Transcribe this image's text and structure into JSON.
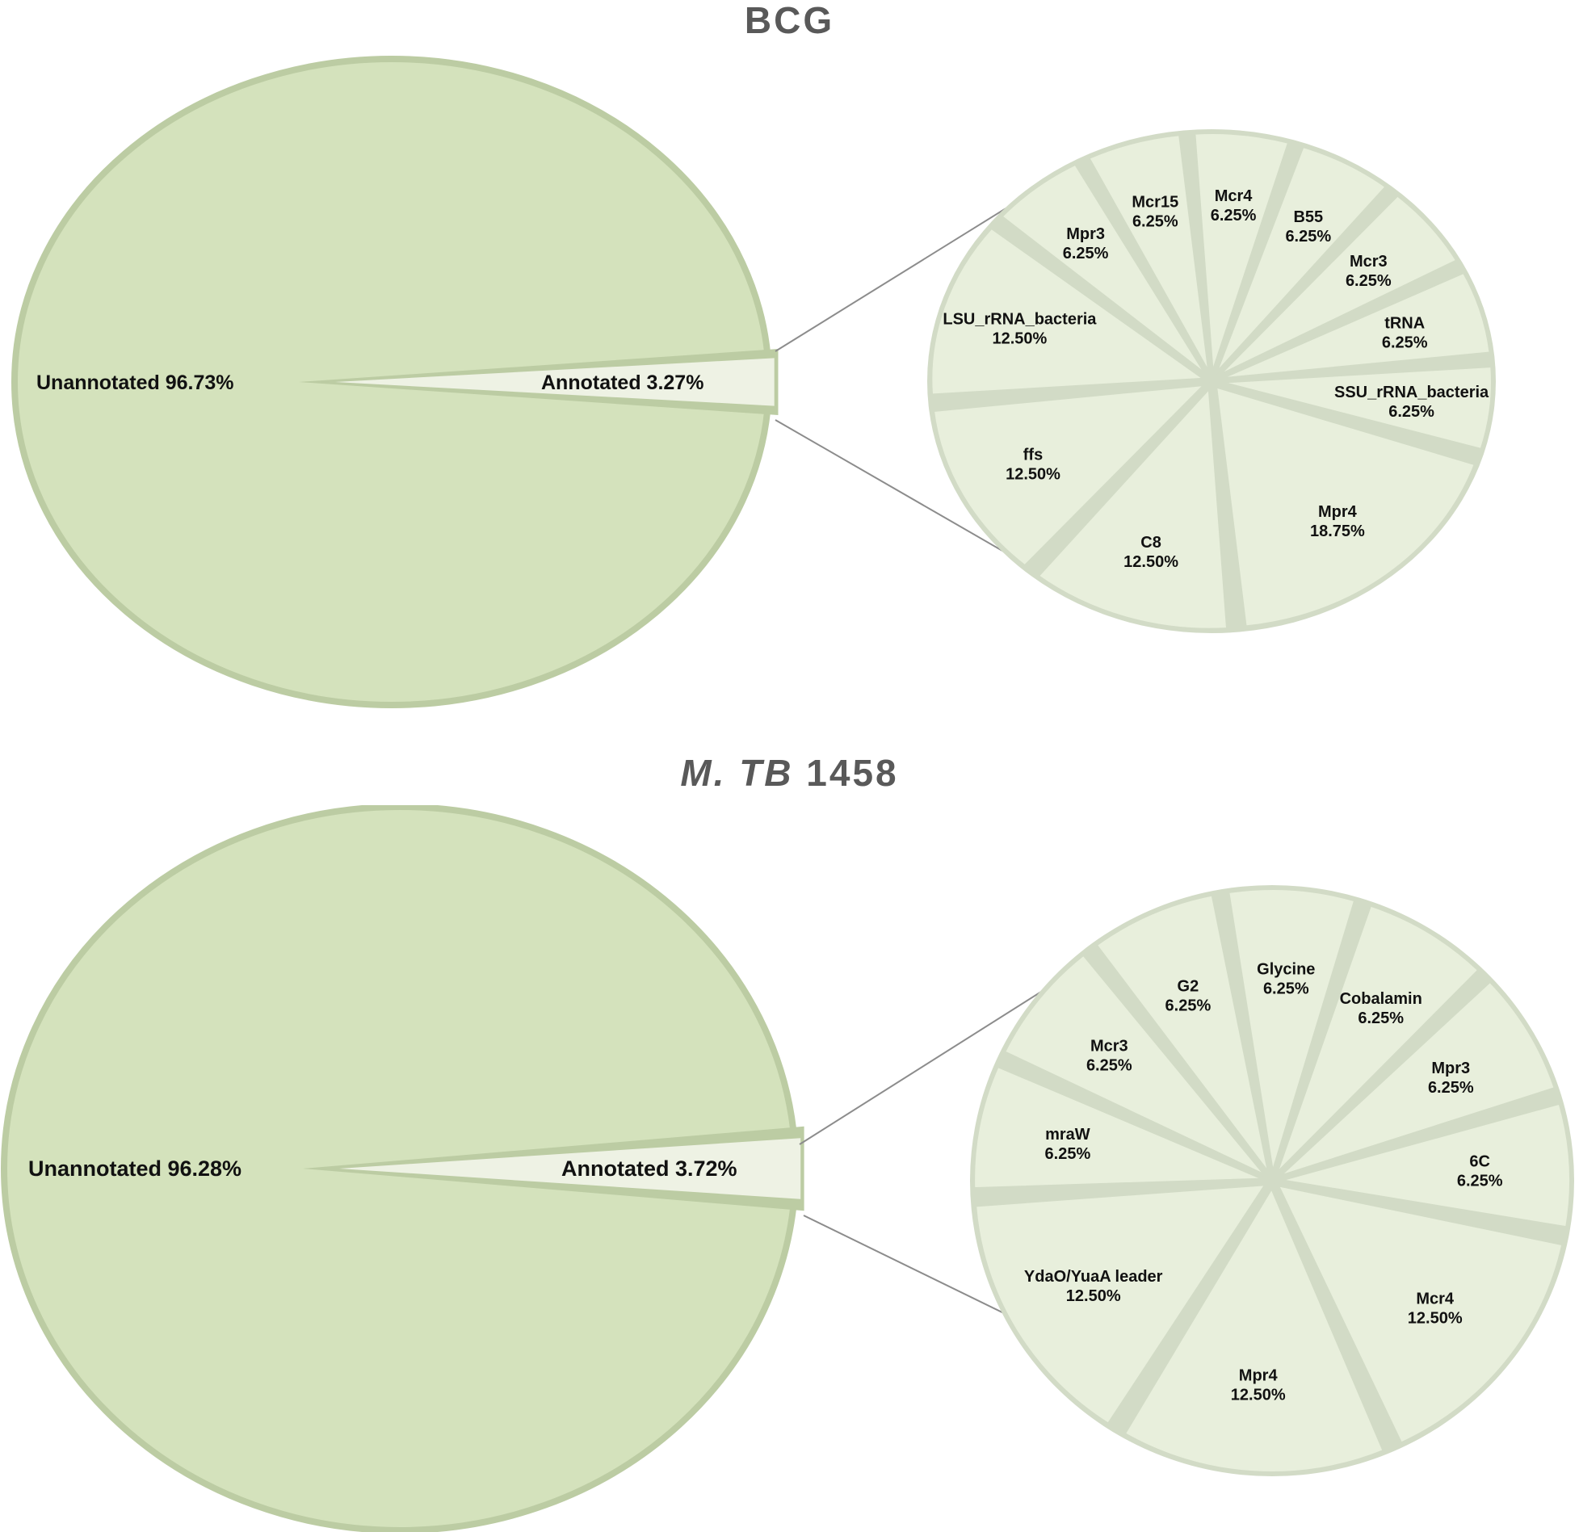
{
  "panels": [
    {
      "title_prefix": "",
      "title_italic": "",
      "title_rest": "BCG",
      "chart_data": {
        "type": "pie",
        "title": "BCG",
        "overview": {
          "slices": [
            {
              "label": "Unannotated",
              "value": 96.73,
              "text": "Unannotated 96.73%"
            },
            {
              "label": "Annotated",
              "value": 3.27,
              "text": "Annotated 3.27%"
            }
          ]
        },
        "breakdown": {
          "of": "Annotated",
          "slices": [
            {
              "label": "Mcr4",
              "value": 6.25,
              "pct": "6.25%"
            },
            {
              "label": "B55",
              "value": 6.25,
              "pct": "6.25%"
            },
            {
              "label": "Mcr3",
              "value": 6.25,
              "pct": "6.25%"
            },
            {
              "label": "tRNA",
              "value": 6.25,
              "pct": "6.25%"
            },
            {
              "label": "SSU_rRNA_bacteria",
              "value": 6.25,
              "pct": "6.25%"
            },
            {
              "label": "Mpr4",
              "value": 18.75,
              "pct": "18.75%"
            },
            {
              "label": "C8",
              "value": 12.5,
              "pct": "12.50%"
            },
            {
              "label": "ffs",
              "value": 12.5,
              "pct": "12.50%"
            },
            {
              "label": "LSU_rRNA_bacteria",
              "value": 12.5,
              "pct": "12.50%"
            },
            {
              "label": "Mpr3",
              "value": 6.25,
              "pct": "6.25%"
            },
            {
              "label": "Mcr15",
              "value": 6.25,
              "pct": "6.25%"
            }
          ]
        }
      }
    },
    {
      "title_prefix": "",
      "title_italic": "M. TB",
      "title_rest": " 1458",
      "chart_data": {
        "type": "pie",
        "title": "M. TB 1458",
        "overview": {
          "slices": [
            {
              "label": "Unannotated",
              "value": 96.28,
              "text": "Unannotated 96.28%"
            },
            {
              "label": "Annotated",
              "value": 3.72,
              "text": "Annotated 3.72%"
            }
          ]
        },
        "breakdown": {
          "of": "Annotated",
          "slices": [
            {
              "label": "Glycine",
              "value": 6.25,
              "pct": "6.25%"
            },
            {
              "label": "Cobalamin",
              "value": 6.25,
              "pct": "6.25%"
            },
            {
              "label": "Mpr3",
              "value": 6.25,
              "pct": "6.25%"
            },
            {
              "label": "6C",
              "value": 6.25,
              "pct": "6.25%"
            },
            {
              "label": "Mcr4",
              "value": 12.5,
              "pct": "12.50%"
            },
            {
              "label": "Mpr4",
              "value": 12.5,
              "pct": "12.50%"
            },
            {
              "label": "YdaO/YuaA leader",
              "value": 12.5,
              "pct": "12.50%"
            },
            {
              "label": "mraW",
              "value": 6.25,
              "pct": "6.25%"
            },
            {
              "label": "Mcr3",
              "value": 6.25,
              "pct": "6.25%"
            },
            {
              "label": "G2",
              "value": 6.25,
              "pct": "6.25%"
            }
          ]
        }
      }
    }
  ],
  "colors": {
    "big_fill": "#d4e2bc",
    "big_stroke": "#bccca3",
    "small_fill": "#e8efdc",
    "small_stroke": "#d2dbc6",
    "annotated_fill": "#eef2e4",
    "connector": "#8c8c8c",
    "title": "#595959"
  }
}
